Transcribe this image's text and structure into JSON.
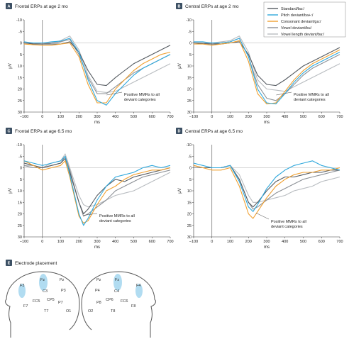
{
  "legend": [
    {
      "name": "Standard/ba:/",
      "color": "#545a60"
    },
    {
      "name": "Pitch deviant/ba+:/",
      "color": "#2fa8dc"
    },
    {
      "name": "Consonant deviant/ga:/",
      "color": "#f0a030"
    },
    {
      "name": "Vowel deviant/bu/",
      "color": "#8c9096"
    },
    {
      "name": "Vowel length deviant/ba:/",
      "color": "#b8bcc0"
    }
  ],
  "panel_e": {
    "badge": "E",
    "title": "Electrode placement",
    "left_labels": [
      "Fz",
      "Pz",
      "F3",
      "C3",
      "FC5",
      "CP5",
      "P3",
      "P7",
      "F7",
      "T7",
      "O1"
    ],
    "right_labels": [
      "Fz",
      "Pz",
      "P4",
      "C4",
      "F4",
      "CP6",
      "FC6",
      "P8",
      "F8",
      "O2",
      "T8"
    ]
  },
  "chart_data": [
    {
      "type": "line",
      "badge": "A",
      "title": "Frontal ERPs at age 2 mo",
      "xlabel": "ms",
      "ylabel": "μV",
      "xlim": [
        -100,
        700
      ],
      "ylim": [
        -10,
        30
      ],
      "y_inverted": true,
      "xticks": [
        -100,
        0,
        100,
        200,
        300,
        400,
        500,
        600,
        700
      ],
      "yticks": [
        -10,
        -5,
        0,
        5,
        10,
        15,
        20,
        25,
        30
      ],
      "annotation": [
        "Positive MMRs to all",
        "deviant categories"
      ],
      "x": [
        -100,
        -50,
        0,
        50,
        100,
        150,
        200,
        250,
        300,
        350,
        400,
        450,
        500,
        550,
        600,
        650,
        700
      ],
      "series": [
        {
          "name": "Standard/ba:/",
          "values": [
            0,
            0.5,
            0.5,
            0.5,
            0.5,
            -0.5,
            4,
            12,
            18,
            18.5,
            15,
            12,
            9,
            7,
            5,
            3,
            1
          ]
        },
        {
          "name": "Pitch deviant/ba+:/",
          "values": [
            -0.5,
            0,
            0,
            -0.5,
            -0.8,
            -2,
            4,
            16,
            25,
            27,
            22,
            18,
            14,
            11,
            9,
            7,
            5
          ]
        },
        {
          "name": "Consonant deviant/ga:/",
          "values": [
            0.5,
            0.8,
            1,
            1,
            0.5,
            0,
            6,
            18,
            26,
            26,
            20,
            16,
            12,
            9,
            7,
            5,
            4
          ]
        },
        {
          "name": "Vowel deviant/bu/",
          "values": [
            0,
            0.3,
            0.5,
            0,
            -0.5,
            -1.5,
            5,
            15,
            22,
            22,
            19,
            16,
            13,
            11,
            9,
            7,
            5
          ]
        },
        {
          "name": "Vowel length deviant/ba:/",
          "values": [
            0,
            0,
            0.5,
            0,
            -1,
            -3,
            3,
            14,
            21,
            21.5,
            21,
            19,
            17,
            15,
            13,
            11,
            9
          ]
        }
      ]
    },
    {
      "type": "line",
      "badge": "B",
      "title": "Central ERPs at age 2 mo",
      "xlabel": "ms",
      "ylabel": "μV",
      "xlim": [
        -100,
        700
      ],
      "ylim": [
        -10,
        30
      ],
      "y_inverted": true,
      "xticks": [
        -100,
        0,
        100,
        200,
        300,
        400,
        500,
        600,
        700
      ],
      "yticks": [
        -10,
        -5,
        0,
        5,
        10,
        15,
        20,
        25,
        30
      ],
      "annotation": [
        "Positive MMRs to all",
        "deviant categories"
      ],
      "x": [
        -100,
        -50,
        0,
        50,
        100,
        150,
        200,
        250,
        300,
        350,
        400,
        450,
        500,
        550,
        600,
        650,
        700
      ],
      "series": [
        {
          "name": "Standard/ba:/",
          "values": [
            0,
            0.3,
            0.5,
            0.5,
            0,
            -0.5,
            5,
            14,
            18,
            18.5,
            16,
            13,
            10,
            8,
            6,
            4,
            2
          ]
        },
        {
          "name": "Pitch deviant/ba+:/",
          "values": [
            -0.5,
            -0.5,
            0,
            0,
            -0.5,
            -2,
            6,
            20,
            26,
            26.5,
            22,
            17,
            13,
            10,
            8,
            6,
            4
          ]
        },
        {
          "name": "Consonant deviant/ga:/",
          "values": [
            0.5,
            0.5,
            1,
            0.5,
            0,
            -1,
            8,
            22,
            26.5,
            26,
            21,
            16,
            12,
            9,
            7,
            5,
            3
          ]
        },
        {
          "name": "Vowel deviant/bu/",
          "values": [
            0,
            0,
            0.5,
            0,
            -0.5,
            -2,
            6,
            18,
            24,
            25,
            22,
            18,
            14,
            11,
            9,
            7,
            5
          ]
        },
        {
          "name": "Vowel length deviant/ba:/",
          "values": [
            0,
            0,
            0,
            -0.5,
            -1,
            -3,
            4,
            16,
            20,
            20.5,
            21,
            19,
            17,
            15,
            13,
            11,
            9
          ]
        }
      ]
    },
    {
      "type": "line",
      "badge": "C",
      "title": "Frontal ERPs at age 6.5 mo",
      "xlabel": "ms",
      "ylabel": "μV",
      "xlim": [
        -100,
        700
      ],
      "ylim": [
        -10,
        30
      ],
      "y_inverted": true,
      "xticks": [
        -100,
        0,
        100,
        200,
        300,
        400,
        500,
        600,
        700
      ],
      "yticks": [
        -10,
        -5,
        0,
        5,
        10,
        15,
        20,
        25,
        30
      ],
      "annotation": [
        "Positive MMRs to all",
        "deviant categories"
      ],
      "x": [
        -100,
        -50,
        0,
        50,
        100,
        125,
        150,
        200,
        225,
        250,
        300,
        350,
        400,
        450,
        500,
        550,
        600,
        650,
        700
      ],
      "series": [
        {
          "name": "Standard/ba:/",
          "values": [
            -2,
            -1,
            0,
            -1,
            -2,
            -4,
            2,
            15,
            20,
            18,
            12,
            8,
            5,
            6,
            4,
            3,
            2,
            1,
            0
          ]
        },
        {
          "name": "Pitch deviant/ba+:/",
          "values": [
            -3,
            -2,
            -1,
            -2,
            -3,
            -5,
            3,
            20,
            25,
            22,
            14,
            8,
            4,
            3,
            2,
            0,
            -1,
            0,
            -1
          ]
        },
        {
          "name": "Consonant deviant/ga:/",
          "values": [
            -3,
            -1,
            1,
            0,
            -1,
            -3,
            4,
            21,
            24,
            23,
            16,
            10,
            8,
            5,
            3,
            2,
            1,
            1,
            0
          ]
        },
        {
          "name": "Vowel deviant/bu/",
          "values": [
            -1,
            0,
            0,
            -1,
            -2,
            -5,
            1,
            15,
            21,
            20,
            17,
            14,
            10,
            8,
            6,
            4,
            3,
            2,
            1
          ]
        },
        {
          "name": "Vowel length deviant/ba:/",
          "values": [
            -1,
            -1,
            0,
            -2,
            -3,
            -6,
            0,
            12,
            16,
            17,
            16,
            14,
            12,
            11,
            10,
            8,
            6,
            4,
            2
          ]
        }
      ]
    },
    {
      "type": "line",
      "badge": "D",
      "title": "Central ERPs at age 6.5 mo",
      "xlabel": "ms",
      "ylabel": "μV",
      "xlim": [
        -100,
        700
      ],
      "ylim": [
        -10,
        30
      ],
      "y_inverted": true,
      "xticks": [
        -100,
        0,
        100,
        200,
        300,
        400,
        500,
        600,
        700
      ],
      "yticks": [
        -10,
        -5,
        0,
        5,
        10,
        15,
        20,
        25,
        30
      ],
      "annotation": [
        "Positive MMRs to all",
        "deviant categories"
      ],
      "x": [
        -100,
        -50,
        0,
        50,
        100,
        150,
        200,
        225,
        250,
        300,
        350,
        400,
        450,
        500,
        550,
        600,
        650,
        700
      ],
      "series": [
        {
          "name": "Standard/ba:/",
          "values": [
            -1,
            0,
            0,
            0,
            -1,
            5,
            15,
            17,
            15,
            10,
            6,
            4,
            4,
            3,
            2,
            2,
            1,
            1
          ]
        },
        {
          "name": "Pitch deviant/ba+:/",
          "values": [
            -2,
            -1,
            0,
            0,
            -1,
            6,
            17,
            19,
            16,
            9,
            4,
            1,
            -1,
            -2,
            -3,
            -1,
            0,
            1
          ]
        },
        {
          "name": "Consonant deviant/ga:/",
          "values": [
            -1,
            0,
            1,
            1,
            0,
            8,
            20,
            22,
            19,
            13,
            8,
            5,
            3,
            2,
            2,
            1,
            1,
            0
          ]
        },
        {
          "name": "Vowel deviant/bu/",
          "values": [
            0,
            0,
            0,
            0,
            -1,
            5,
            15,
            18,
            17,
            14,
            11,
            9,
            7,
            5,
            4,
            3,
            2,
            1
          ]
        },
        {
          "name": "Vowel length deviant/ba:/",
          "values": [
            0,
            0,
            0,
            0,
            -1,
            3,
            12,
            15,
            15,
            14,
            13,
            12,
            10,
            9,
            8,
            6,
            5,
            4
          ]
        }
      ]
    }
  ]
}
